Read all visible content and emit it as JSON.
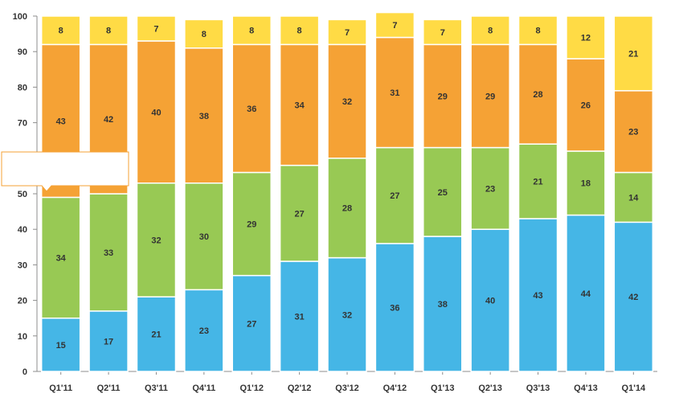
{
  "chart_data": {
    "type": "bar",
    "stacked": true,
    "categories": [
      "Q1'11",
      "Q2'11",
      "Q3'11",
      "Q4'11",
      "Q1'12",
      "Q2'12",
      "Q3'12",
      "Q4'12",
      "Q1'13",
      "Q2'13",
      "Q3'13",
      "Q4'13",
      "Q1'14"
    ],
    "series": [
      {
        "color": "#45B6E6",
        "values": [
          15,
          17,
          21,
          23,
          27,
          31,
          32,
          36,
          38,
          40,
          43,
          44,
          42
        ]
      },
      {
        "color": "#98C954",
        "values": [
          34,
          33,
          32,
          30,
          29,
          27,
          28,
          27,
          25,
          23,
          21,
          18,
          14
        ]
      },
      {
        "color": "#F5A235",
        "values": [
          43,
          42,
          40,
          38,
          36,
          34,
          32,
          31,
          29,
          29,
          28,
          26,
          23
        ]
      },
      {
        "color": "#FFDB45",
        "values": [
          8,
          8,
          7,
          8,
          8,
          8,
          7,
          7,
          7,
          8,
          8,
          12,
          21
        ]
      }
    ],
    "ylim": [
      0,
      100
    ],
    "yticks": [
      0,
      10,
      20,
      30,
      40,
      50,
      60,
      70,
      80,
      90,
      100
    ],
    "grid": false,
    "legend": "none",
    "tooltip_callout": {
      "text": "",
      "category_index": 0
    }
  }
}
